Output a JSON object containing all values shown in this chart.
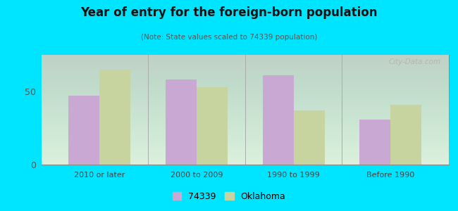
{
  "title": "Year of entry for the foreign-born population",
  "subtitle": "(Note: State values scaled to 74339 population)",
  "categories": [
    "2010 or later",
    "2000 to 2009",
    "1990 to 1999",
    "Before 1990"
  ],
  "values_74339": [
    47,
    58,
    61,
    31
  ],
  "values_oklahoma": [
    65,
    53,
    37,
    41
  ],
  "color_74339": "#c9a8d4",
  "color_oklahoma": "#c8d4a0",
  "background_outer": "#00e5ff",
  "background_chart": "#dff0df",
  "yticks": [
    0,
    50
  ],
  "ylim": [
    0,
    75
  ],
  "bar_width": 0.32,
  "legend_label_74339": "74339",
  "legend_label_oklahoma": "Oklahoma",
  "watermark": "City-Data.com"
}
